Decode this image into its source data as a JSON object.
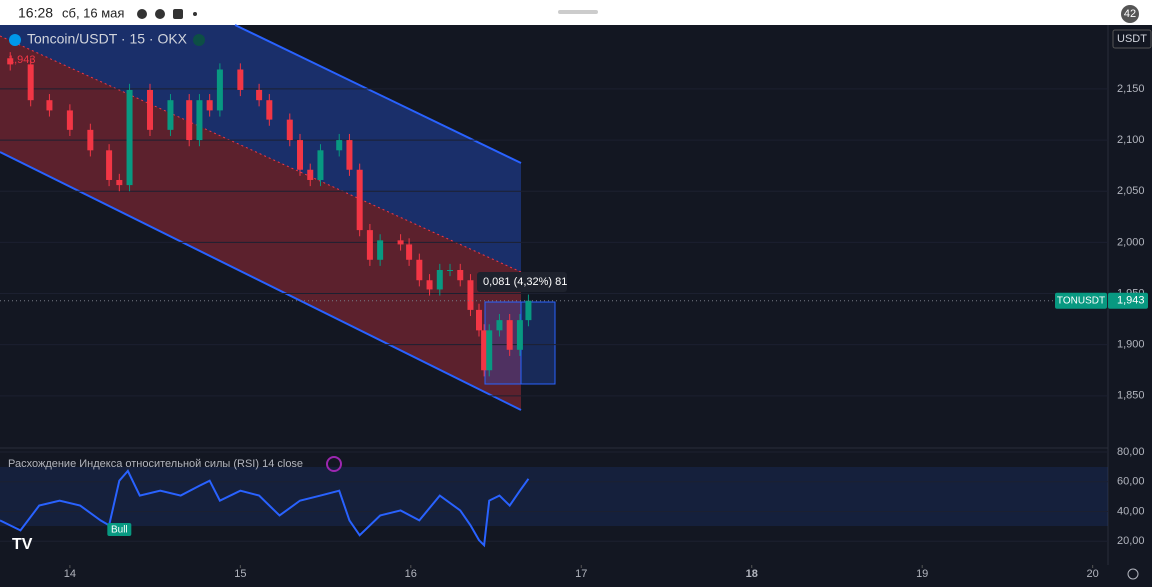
{
  "status_bar": {
    "time": "16:28",
    "date": "сб, 16 мая",
    "battery": "42"
  },
  "toolbar": {
    "symbol_tag": "TONUSDT",
    "last_price": "1,943",
    "top_price": "1,943",
    "currency": "USDT",
    "measure": "0,081 (4,32%) 81"
  },
  "chart_data": [
    {
      "type": "candlestick",
      "title": "Toncoin/USDT · 15 · OKX",
      "x": [
        13.65,
        13.77,
        13.88,
        14.0,
        14.12,
        14.23,
        14.29,
        14.35,
        14.47,
        14.59,
        14.7,
        14.76,
        14.82,
        14.88,
        15.0,
        15.11,
        15.17,
        15.29,
        15.35,
        15.41,
        15.47,
        15.58,
        15.64,
        15.7,
        15.76,
        15.82,
        15.94,
        15.99,
        16.05,
        16.11,
        16.17,
        16.23,
        16.29,
        16.35,
        16.4,
        16.43,
        16.46,
        16.52,
        16.58,
        16.64,
        16.69
      ],
      "open": [
        2180,
        2174,
        2139,
        2129,
        2110,
        2090,
        2061,
        2056,
        2149,
        2110,
        2139,
        2100,
        2139,
        2129,
        2169,
        2149,
        2139,
        2120,
        2100,
        2071,
        2061,
        2090,
        2100,
        2071,
        2012,
        1983,
        2002,
        1998,
        1983,
        1963,
        1954,
        1973,
        1973,
        1963,
        1934,
        1914,
        1875,
        1914,
        1924,
        1895,
        1924
      ],
      "high": [
        2186,
        2180,
        2145,
        2135,
        2116,
        2096,
        2067,
        2155,
        2155,
        2145,
        2145,
        2145,
        2145,
        2175,
        2175,
        2155,
        2145,
        2126,
        2106,
        2077,
        2096,
        2106,
        2106,
        2077,
        2018,
        2008,
        2008,
        2004,
        1989,
        1969,
        1979,
        1979,
        1979,
        1969,
        1940,
        1920,
        1920,
        1930,
        1930,
        1930,
        1949
      ],
      "low": [
        2168,
        2133,
        2123,
        2104,
        2084,
        2055,
        2050,
        2050,
        2104,
        2104,
        2094,
        2094,
        2123,
        2123,
        2143,
        2133,
        2114,
        2094,
        2065,
        2055,
        2055,
        2084,
        2065,
        2006,
        1977,
        1977,
        1992,
        1977,
        1957,
        1948,
        1948,
        1967,
        1957,
        1928,
        1908,
        1869,
        1869,
        1908,
        1889,
        1889,
        1918
      ],
      "close": [
        2174,
        2139,
        2129,
        2110,
        2090,
        2061,
        2056,
        2149,
        2110,
        2139,
        2100,
        2139,
        2129,
        2169,
        2149,
        2139,
        2120,
        2100,
        2071,
        2061,
        2090,
        2100,
        2071,
        2012,
        1983,
        2002,
        1998,
        1983,
        1963,
        1954,
        1973,
        1973,
        1963,
        1934,
        1914,
        1875,
        1914,
        1924,
        1895,
        1924,
        1943
      ],
      "up_color": "#089981",
      "down_color": "#f23645",
      "xlim": [
        13.59,
        20.09
      ],
      "ylim": [
        1799,
        2212.5
      ],
      "yticks": [
        {
          "value": 1850,
          "label": "1,850"
        },
        {
          "value": 1900,
          "label": "1,900"
        },
        {
          "value": 1950,
          "label": "1,950"
        },
        {
          "value": 2000,
          "label": "2,000"
        },
        {
          "value": 2050,
          "label": "2,050"
        },
        {
          "value": 2100,
          "label": "2,100"
        },
        {
          "value": 2150,
          "label": "2,150"
        }
      ]
    },
    {
      "type": "line",
      "title": "Расхождение Индекса относительной силы (RSI) 14 close",
      "annotation": "Bull",
      "color": "#2962ff",
      "x": [
        13.59,
        13.71,
        13.82,
        13.94,
        14.06,
        14.18,
        14.23,
        14.29,
        14.34,
        14.41,
        14.53,
        14.65,
        14.76,
        14.82,
        14.88,
        15.0,
        15.11,
        15.23,
        15.35,
        15.47,
        15.58,
        15.64,
        15.7,
        15.82,
        15.94,
        16.05,
        16.17,
        16.29,
        16.35,
        16.4,
        16.43,
        16.46,
        16.52,
        16.58,
        16.64,
        16.69
      ],
      "values": [
        34,
        27.3,
        44,
        47.3,
        44,
        34,
        30.7,
        60.7,
        67.3,
        50.7,
        54,
        50.7,
        57.3,
        60.7,
        47.3,
        54,
        50.7,
        37.3,
        47.3,
        50.7,
        54,
        34,
        24,
        37.3,
        40.7,
        34,
        50.7,
        40.7,
        30.7,
        20.7,
        17.3,
        47.3,
        50.7,
        44,
        54,
        62
      ],
      "xlim": [
        13.59,
        20.09
      ],
      "ylim": [
        4,
        82.7
      ],
      "xticks": [
        14,
        15,
        16,
        17,
        18,
        19,
        20
      ],
      "yticks": [
        {
          "value": 20,
          "label": "20,00"
        },
        {
          "value": 40,
          "label": "40,00"
        },
        {
          "value": 60,
          "label": "60,00"
        },
        {
          "value": 80,
          "label": "80,00"
        }
      ]
    }
  ]
}
